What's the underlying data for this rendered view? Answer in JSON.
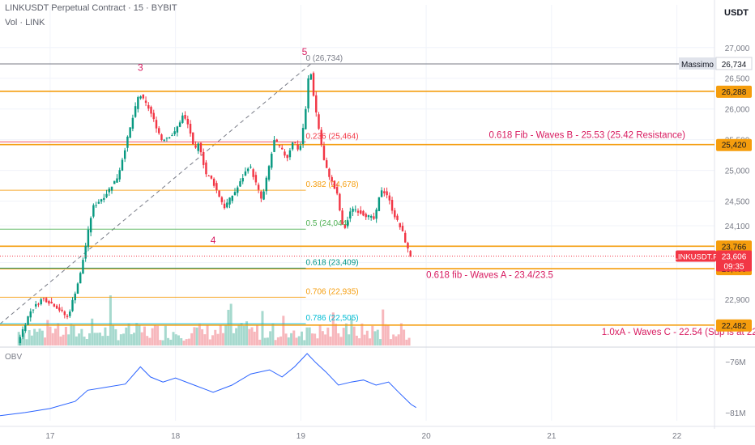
{
  "header": {
    "symbol_line": "LINKUSDT Perpetual Contract · 15 · BYBIT",
    "volume_line": "Vol · LINK"
  },
  "currency_label": "USDT",
  "obv_label": "OBV",
  "colors": {
    "up": "#089981",
    "down": "#f23645",
    "vol_up": "#a6d9ce",
    "vol_down": "#f7b7bc",
    "orange": "#f59d0d",
    "annot_red": "#d81b60",
    "obv_line": "#2962ff",
    "green_level": "#4caf50",
    "teal": "#009688",
    "cyan": "#00bcd4",
    "grid": "#f0f3fa"
  },
  "chart_data": {
    "type": "candlestick",
    "price_axis": {
      "ylim": [
        22150,
        27300
      ],
      "ticks": [
        27000,
        26500,
        26000,
        25500,
        25000,
        24500,
        24100,
        23500,
        22900
      ],
      "tick_labels": [
        "27,000",
        "26,500",
        "26,000",
        "25,500",
        "25,000",
        "24,500",
        "24,100",
        "23,500",
        "22,900"
      ]
    },
    "time_axis": {
      "xlim": [
        16.6,
        22.3
      ],
      "ticks": [
        17,
        18,
        19,
        20,
        21,
        22
      ],
      "tick_labels": [
        "17",
        "18",
        "19",
        "20",
        "21",
        "22"
      ]
    },
    "price_path": [
      [
        16.75,
        22200
      ],
      [
        16.85,
        22700
      ],
      [
        16.95,
        22920
      ],
      [
        17.05,
        22800
      ],
      [
        17.15,
        22600
      ],
      [
        17.25,
        23300
      ],
      [
        17.35,
        24400
      ],
      [
        17.45,
        24600
      ],
      [
        17.55,
        24900
      ],
      [
        17.65,
        25700
      ],
      [
        17.72,
        26250
      ],
      [
        17.8,
        26000
      ],
      [
        17.9,
        25500
      ],
      [
        18.0,
        25600
      ],
      [
        18.07,
        25900
      ],
      [
        18.12,
        25700
      ],
      [
        18.16,
        25300
      ],
      [
        18.2,
        25450
      ],
      [
        18.25,
        24950
      ],
      [
        18.3,
        24850
      ],
      [
        18.4,
        24400
      ],
      [
        18.5,
        24700
      ],
      [
        18.55,
        24900
      ],
      [
        18.6,
        25100
      ],
      [
        18.7,
        24500
      ],
      [
        18.8,
        25500
      ],
      [
        18.9,
        25200
      ],
      [
        18.95,
        25500
      ],
      [
        19.0,
        25300
      ],
      [
        19.05,
        26000
      ],
      [
        19.08,
        26734
      ],
      [
        19.12,
        26100
      ],
      [
        19.2,
        25100
      ],
      [
        19.3,
        24600
      ],
      [
        19.35,
        24000
      ],
      [
        19.42,
        24400
      ],
      [
        19.5,
        24300
      ],
      [
        19.6,
        24200
      ],
      [
        19.65,
        24700
      ],
      [
        19.7,
        24600
      ],
      [
        19.75,
        24300
      ],
      [
        19.82,
        24000
      ],
      [
        19.88,
        23606
      ]
    ],
    "obv_axis": {
      "ylim": [
        -81.8,
        -74.8
      ],
      "ticks": [
        -76,
        -81
      ],
      "tick_labels": [
        "−76M",
        "−81M"
      ]
    },
    "obv_path": [
      [
        16.6,
        -81.3
      ],
      [
        16.8,
        -81.0
      ],
      [
        17.0,
        -80.6
      ],
      [
        17.2,
        -79.9
      ],
      [
        17.3,
        -78.8
      ],
      [
        17.45,
        -78.5
      ],
      [
        17.6,
        -78.2
      ],
      [
        17.72,
        -76.5
      ],
      [
        17.8,
        -77.5
      ],
      [
        17.9,
        -78.0
      ],
      [
        18.0,
        -77.6
      ],
      [
        18.15,
        -78.3
      ],
      [
        18.3,
        -79.0
      ],
      [
        18.45,
        -78.3
      ],
      [
        18.6,
        -77.2
      ],
      [
        18.75,
        -76.8
      ],
      [
        18.85,
        -77.5
      ],
      [
        18.95,
        -76.5
      ],
      [
        19.05,
        -75.2
      ],
      [
        19.12,
        -76.1
      ],
      [
        19.2,
        -77.0
      ],
      [
        19.3,
        -78.3
      ],
      [
        19.4,
        -78.0
      ],
      [
        19.5,
        -77.8
      ],
      [
        19.6,
        -78.3
      ],
      [
        19.7,
        -78.0
      ],
      [
        19.78,
        -79.0
      ],
      [
        19.88,
        -80.2
      ],
      [
        19.92,
        -80.5
      ]
    ],
    "fib_levels": [
      {
        "label": "0 (26,734)",
        "price": 26734,
        "color": "#787b86"
      },
      {
        "label": "0.236 (25,464)",
        "price": 25464,
        "color": "#f23645"
      },
      {
        "label": "0.382 (24,678)",
        "price": 24678,
        "color": "#f59d0d"
      },
      {
        "label": "0.5 (24,044)",
        "price": 24044,
        "color": "#4caf50"
      },
      {
        "label": "0.618 (23,409)",
        "price": 23409,
        "color": "#009688"
      },
      {
        "label": "0.706 (22,935)",
        "price": 22935,
        "color": "#f59d0d"
      },
      {
        "label": "0.786 (22,505)",
        "price": 22505,
        "color": "#00bcd4"
      }
    ],
    "horizontal_lines": [
      {
        "price": 26734,
        "color": "#787b86"
      },
      {
        "price": 26288,
        "color": "#f59d0d"
      },
      {
        "price": 25420,
        "color": "#f59d0d"
      },
      {
        "price": 23766,
        "color": "#f59d0d"
      },
      {
        "price": 23400,
        "color": "#f59d0d"
      },
      {
        "price": 22482,
        "color": "#f59d0d"
      }
    ],
    "price_badges": [
      {
        "text": "26,288",
        "price": 26288,
        "bg": "#f59d0d",
        "fg": "#131722"
      },
      {
        "text": "25,420",
        "price": 25420,
        "bg": "#f59d0d",
        "fg": "#131722"
      },
      {
        "text": "23,766",
        "price": 23766,
        "bg": "#f59d0d",
        "fg": "#131722"
      },
      {
        "text": "23,400",
        "price": 23400,
        "bg": "#f59d0d",
        "fg": "#131722"
      },
      {
        "text": "22,482",
        "price": 22482,
        "bg": "#f59d0d",
        "fg": "#131722"
      }
    ],
    "high_marker": {
      "label": "Massimo",
      "value_text": "26,734",
      "price": 26734
    },
    "current_price": {
      "symbol": "LINKUSDT.P",
      "value_text": "23,606",
      "countdown": "09:35",
      "price": 23606
    },
    "annotations": [
      {
        "text": "0.618 Fib - Waves B - 25.53 (25.42 Resistance)",
        "t": 20.5,
        "price": 25530
      },
      {
        "text": "0.618 fib - Waves A - 23.4/23.5",
        "t": 20.0,
        "price": 23250
      },
      {
        "text": "1.0xA - Waves C - 22.54 (Sup is at 22",
        "t": 21.4,
        "price": 22320
      }
    ],
    "wave_labels": [
      {
        "text": "3",
        "t": 17.72,
        "price": 26620
      },
      {
        "text": "4",
        "t": 18.3,
        "price": 23810
      },
      {
        "text": "5",
        "t": 19.03,
        "price": 26880
      }
    ],
    "trend_line": {
      "from": [
        16.6,
        22500
      ],
      "to": [
        19.08,
        26734
      ]
    }
  }
}
